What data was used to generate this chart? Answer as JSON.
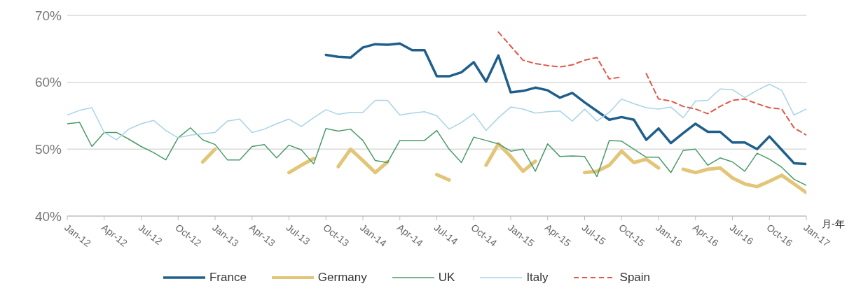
{
  "chart_data": {
    "type": "line",
    "xlabel": "月-年",
    "x": [
      "2012-01",
      "2012-02",
      "2012-03",
      "2012-04",
      "2012-05",
      "2012-06",
      "2012-07",
      "2012-08",
      "2012-09",
      "2012-10",
      "2012-11",
      "2012-12",
      "2013-01",
      "2013-02",
      "2013-03",
      "2013-04",
      "2013-05",
      "2013-06",
      "2013-07",
      "2013-08",
      "2013-09",
      "2013-10",
      "2013-11",
      "2013-12",
      "2014-01",
      "2014-02",
      "2014-03",
      "2014-04",
      "2014-05",
      "2014-06",
      "2014-07",
      "2014-08",
      "2014-09",
      "2014-10",
      "2014-11",
      "2014-12",
      "2015-01",
      "2015-02",
      "2015-03",
      "2015-04",
      "2015-05",
      "2015-06",
      "2015-07",
      "2015-08",
      "2015-09",
      "2015-10",
      "2015-11",
      "2015-12",
      "2016-01",
      "2016-02",
      "2016-03",
      "2016-04",
      "2016-05",
      "2016-06",
      "2016-07",
      "2016-08",
      "2016-09",
      "2016-10",
      "2016-11",
      "2016-12",
      "2017-01"
    ],
    "series": [
      {
        "name": "France",
        "color": "#1f5f8b",
        "values": [
          null,
          null,
          null,
          null,
          null,
          null,
          null,
          null,
          null,
          null,
          null,
          null,
          null,
          null,
          null,
          null,
          null,
          null,
          null,
          null,
          null,
          64.1,
          63.8,
          63.7,
          65.2,
          65.7,
          65.6,
          65.8,
          64.8,
          64.8,
          60.9,
          60.9,
          61.5,
          63.0,
          60.1,
          64.0,
          58.5,
          58.7,
          59.2,
          58.8,
          57.7,
          58.4,
          57.0,
          55.7,
          54.4,
          54.8,
          54.4,
          51.4,
          53.1,
          50.9,
          52.4,
          53.8,
          52.6,
          52.6,
          51.0,
          51.0,
          50.0,
          51.9,
          49.9,
          47.9,
          47.8
        ]
      },
      {
        "name": "Germany",
        "color": "#e3c578",
        "values": [
          null,
          null,
          null,
          null,
          null,
          null,
          null,
          null,
          null,
          null,
          null,
          48.1,
          50.0,
          null,
          null,
          null,
          null,
          null,
          46.5,
          47.6,
          48.6,
          null,
          47.4,
          50.0,
          48.3,
          46.5,
          48.1,
          null,
          null,
          null,
          46.2,
          45.4,
          null,
          null,
          47.6,
          50.8,
          48.9,
          46.7,
          48.2,
          null,
          null,
          null,
          46.5,
          46.7,
          47.6,
          49.7,
          48.0,
          48.5,
          47.2,
          null,
          47.0,
          46.5,
          47.0,
          47.2,
          45.7,
          44.8,
          44.4,
          45.2,
          46.1,
          44.8,
          43.5
        ]
      },
      {
        "name": "UK",
        "color": "#4a9a6a",
        "values": [
          53.8,
          54.0,
          50.4,
          52.5,
          52.5,
          51.5,
          50.4,
          49.5,
          48.4,
          51.7,
          53.2,
          51.4,
          50.7,
          48.4,
          48.4,
          50.4,
          50.7,
          48.7,
          50.6,
          49.9,
          47.8,
          53.1,
          52.7,
          53.0,
          51.3,
          48.3,
          48.0,
          51.3,
          51.3,
          51.3,
          52.8,
          50.0,
          48.0,
          51.8,
          51.3,
          50.8,
          49.7,
          50.0,
          46.7,
          50.8,
          48.9,
          49.0,
          48.9,
          45.9,
          51.3,
          51.2,
          50.0,
          48.8,
          48.8,
          46.5,
          49.8,
          50.0,
          47.6,
          48.7,
          48.1,
          46.7,
          49.4,
          48.5,
          47.3,
          45.5,
          44.6
        ]
      },
      {
        "name": "Italy",
        "color": "#a9d3e8",
        "values": [
          55.1,
          55.8,
          56.2,
          52.5,
          51.4,
          53.0,
          53.8,
          54.3,
          52.8,
          51.7,
          52.1,
          52.3,
          52.5,
          54.2,
          54.5,
          52.5,
          53.0,
          53.8,
          54.5,
          53.4,
          54.7,
          55.9,
          55.2,
          55.5,
          55.5,
          57.3,
          57.3,
          55.1,
          55.4,
          55.6,
          55.0,
          53.0,
          54.0,
          55.3,
          52.8,
          54.7,
          56.3,
          56.0,
          55.4,
          55.6,
          55.7,
          54.2,
          56.0,
          54.2,
          55.5,
          57.5,
          56.8,
          56.2,
          56.0,
          56.3,
          54.7,
          57.2,
          57.3,
          59.0,
          58.9,
          57.7,
          58.8,
          59.7,
          58.8,
          55.1,
          56.0
        ]
      },
      {
        "name": "Spain",
        "color": "#e0584a",
        "line_style": "dashed",
        "values": [
          null,
          null,
          null,
          null,
          null,
          null,
          null,
          null,
          null,
          null,
          null,
          null,
          null,
          null,
          null,
          null,
          null,
          null,
          null,
          null,
          null,
          null,
          null,
          null,
          null,
          null,
          null,
          null,
          null,
          null,
          null,
          null,
          null,
          null,
          null,
          67.5,
          65.4,
          63.3,
          62.8,
          62.5,
          62.3,
          62.6,
          63.3,
          63.7,
          60.5,
          60.8,
          null,
          61.3,
          57.5,
          57.2,
          56.4,
          56.0,
          55.3,
          56.4,
          57.3,
          57.5,
          56.8,
          56.2,
          56.0,
          53.2,
          52.1
        ]
      }
    ],
    "ylim": [
      40,
      70
    ],
    "yticks": [
      {
        "value": 40,
        "label": "40%"
      },
      {
        "value": 50,
        "label": "50%"
      },
      {
        "value": 60,
        "label": "60%"
      },
      {
        "value": 70,
        "label": "70%"
      }
    ],
    "xticks": [
      {
        "value": "2012-01",
        "label": "Jan-12"
      },
      {
        "value": "2012-04",
        "label": "Apr-12"
      },
      {
        "value": "2012-07",
        "label": "Jul-12"
      },
      {
        "value": "2012-10",
        "label": "Oct-12"
      },
      {
        "value": "2013-01",
        "label": "Jan-13"
      },
      {
        "value": "2013-04",
        "label": "Apr-13"
      },
      {
        "value": "2013-07",
        "label": "Jul-13"
      },
      {
        "value": "2013-10",
        "label": "Oct-13"
      },
      {
        "value": "2014-01",
        "label": "Jan-14"
      },
      {
        "value": "2014-04",
        "label": "Apr-14"
      },
      {
        "value": "2014-07",
        "label": "Jul-14"
      },
      {
        "value": "2014-10",
        "label": "Oct-14"
      },
      {
        "value": "2015-01",
        "label": "Jan-15"
      },
      {
        "value": "2015-04",
        "label": "Apr-15"
      },
      {
        "value": "2015-07",
        "label": "Jul-15"
      },
      {
        "value": "2015-10",
        "label": "Oct-15"
      },
      {
        "value": "2016-01",
        "label": "Jan-16"
      },
      {
        "value": "2016-04",
        "label": "Apr-16"
      },
      {
        "value": "2016-07",
        "label": "Jul-16"
      },
      {
        "value": "2016-10",
        "label": "Oct-16"
      },
      {
        "value": "2017-01",
        "label": "Jan-17"
      }
    ],
    "xlim": [
      "2012-01",
      "2017-01"
    ],
    "grid": "y",
    "legend": "bottom",
    "marker": "none"
  }
}
